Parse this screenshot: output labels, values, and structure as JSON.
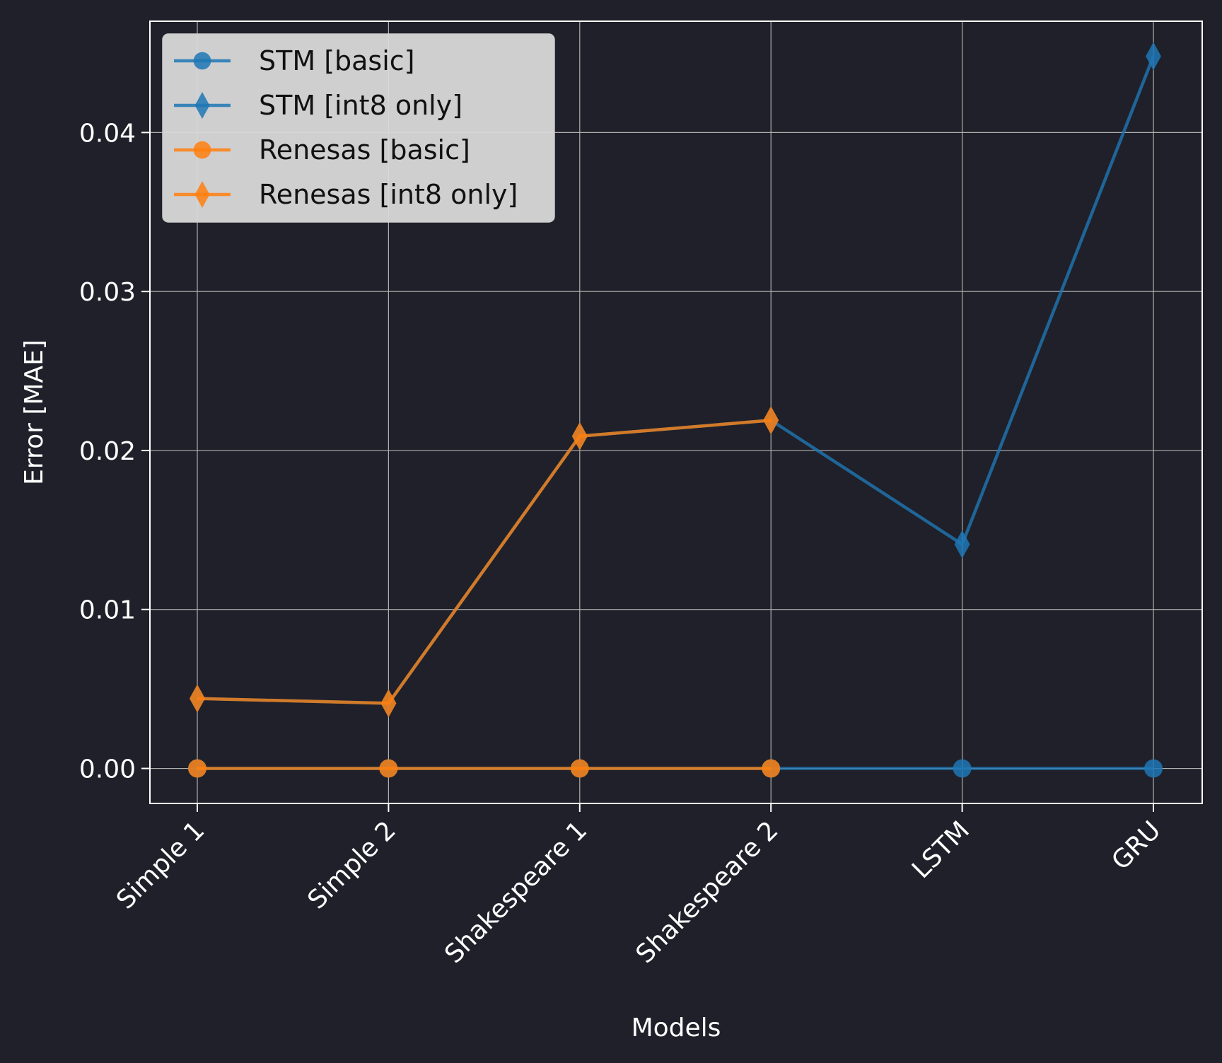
{
  "chart_data": {
    "type": "line",
    "title": "",
    "xlabel": "Models",
    "ylabel": "Error [MAE]",
    "categories": [
      "Simple 1",
      "Simple 2",
      "Shakespeare 1",
      "Shakespeare 2",
      "LSTM",
      "GRU"
    ],
    "ylim": [
      -0.0022,
      0.047
    ],
    "yticks": [
      0.0,
      0.01,
      0.02,
      0.03,
      0.04
    ],
    "ytick_labels": [
      "0.00",
      "0.01",
      "0.02",
      "0.03",
      "0.04"
    ],
    "grid": true,
    "legend_position": "top-left",
    "series": [
      {
        "name": "STM [basic]",
        "color": "#1f77b4",
        "marker": "circle",
        "linestyle": "solid",
        "values": [
          0.0,
          0.0,
          0.0,
          0.0,
          0.0,
          0.0
        ]
      },
      {
        "name": "STM [int8 only]",
        "color": "#1f77b4",
        "marker": "diamond",
        "linestyle": "solid",
        "values": [
          0.0044,
          0.0041,
          0.0209,
          0.0219,
          0.0141,
          0.0448
        ]
      },
      {
        "name": "Renesas [basic]",
        "color": "#ff7f0e",
        "marker": "circle",
        "linestyle": "solid",
        "values": [
          0.0,
          0.0,
          0.0,
          0.0,
          null,
          null
        ]
      },
      {
        "name": "Renesas [int8 only]",
        "color": "#ff7f0e",
        "marker": "diamond",
        "linestyle": "solid",
        "values": [
          0.0044,
          0.0041,
          0.0209,
          0.0219,
          null,
          null
        ]
      }
    ]
  }
}
